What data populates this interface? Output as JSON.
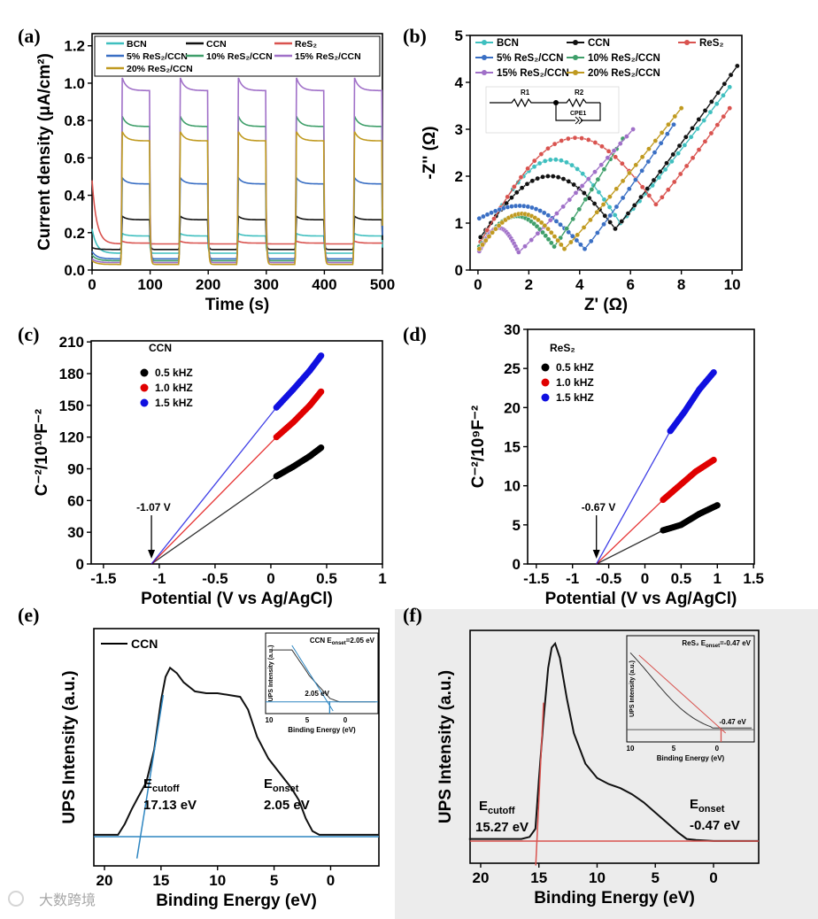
{
  "chart_data": [
    {
      "panel": "(a)",
      "type": "line",
      "xlabel": "Time (s)",
      "ylabel": "Current density (μA/cm²)",
      "xlim": [
        0,
        500
      ],
      "ylim": [
        0,
        1.265
      ],
      "xticks": [
        0,
        100,
        200,
        300,
        400,
        500
      ],
      "yticks": [
        0.0,
        0.2,
        0.4,
        0.6,
        0.8,
        1.0,
        1.2
      ],
      "light_on_intervals": [
        [
          50,
          100
        ],
        [
          150,
          200
        ],
        [
          250,
          300
        ],
        [
          350,
          400
        ],
        [
          450,
          500
        ]
      ],
      "legend_position": "top",
      "series": [
        {
          "name": "BCN",
          "color": "#3fbfbf",
          "light": 0.19,
          "dark": 0.09,
          "initial": 0.22
        },
        {
          "name": "CCN",
          "color": "#111111",
          "light": 0.28,
          "dark": 0.11,
          "initial": 0.12
        },
        {
          "name": "ReS₂",
          "color": "#d9534f",
          "light": 0.15,
          "dark": 0.14,
          "initial": 0.48
        },
        {
          "name": "5% ReS₂/CCN",
          "color": "#3a6fc4",
          "light": 0.48,
          "dark": 0.06,
          "initial": 0.1
        },
        {
          "name": "10% ReS₂/CCN",
          "color": "#3f9f6a",
          "light": 0.8,
          "dark": 0.05,
          "initial": 0.08
        },
        {
          "name": "15% ReS₂/CCN",
          "color": "#a070c8",
          "light": 1.0,
          "dark": 0.04,
          "initial": 0.06
        },
        {
          "name": "20% ReS₂/CCN",
          "color": "#c09a20",
          "light": 0.72,
          "dark": 0.03,
          "initial": 0.05
        }
      ]
    },
    {
      "panel": "(b)",
      "type": "scatter",
      "xlabel": "Z' (Ω)",
      "ylabel": "-Z'' (Ω)",
      "xlim": [
        -0.31,
        10.38
      ],
      "ylim": [
        0,
        5
      ],
      "xticks": [
        0,
        2,
        4,
        6,
        8,
        10
      ],
      "yticks": [
        0,
        1,
        2,
        3,
        4,
        5
      ],
      "legend_position": "top-left",
      "circuit_labels": [
        "R1",
        "R2",
        "CPE1"
      ],
      "series": [
        {
          "name": "BCN",
          "color": "#3fbfbf",
          "start": [
            0.1,
            0.6
          ],
          "peak_height": 2.35,
          "min": [
            5.6,
            1.0
          ],
          "end": [
            9.9,
            3.9
          ]
        },
        {
          "name": "CCN",
          "color": "#111111",
          "start": [
            0.1,
            0.7
          ],
          "peak_height": 2.0,
          "min": [
            5.4,
            0.88
          ],
          "end": [
            10.2,
            4.35
          ]
        },
        {
          "name": "ReS₂",
          "color": "#d9534f",
          "start": [
            0.1,
            0.6
          ],
          "peak_height": 2.8,
          "min": [
            7.0,
            1.4
          ],
          "end": [
            9.9,
            3.45
          ]
        },
        {
          "name": "5% ReS₂/CCN",
          "color": "#3a6fc4",
          "start": [
            0.05,
            1.1
          ],
          "peak_height": 1.33,
          "min": [
            4.2,
            0.45
          ],
          "end": [
            7.7,
            3.1
          ]
        },
        {
          "name": "10% ReS₂/CCN",
          "color": "#3f9f6a",
          "start": [
            0.05,
            0.5
          ],
          "peak_height": 1.15,
          "min": [
            3.0,
            0.5
          ],
          "end": [
            5.7,
            2.8
          ]
        },
        {
          "name": "15% ReS₂/CCN",
          "color": "#a070c8",
          "start": [
            0.05,
            0.4
          ],
          "peak_height": 0.9,
          "min": [
            1.6,
            0.38
          ],
          "end": [
            6.1,
            3.0
          ]
        },
        {
          "name": "20% ReS₂/CCN",
          "color": "#c09a20",
          "start": [
            0.05,
            0.45
          ],
          "peak_height": 1.2,
          "min": [
            3.4,
            0.45
          ],
          "end": [
            8.0,
            3.45
          ]
        }
      ]
    },
    {
      "panel": "(c)",
      "type": "line",
      "title": "CCN",
      "xlabel": "Potential (V vs Ag/AgCl)",
      "ylabel": "C⁻²/10¹⁰F⁻²",
      "xlim": [
        -1.61,
        1.0
      ],
      "ylim": [
        0,
        211
      ],
      "xticks": [
        -1.5,
        -1.0,
        -0.5,
        0.0,
        0.5,
        1.0
      ],
      "yticks": [
        0,
        30,
        60,
        90,
        120,
        150,
        180,
        210
      ],
      "annotation": {
        "text": "-1.07 V",
        "x": -1.07
      },
      "legend_position": "top-left",
      "series": [
        {
          "name": "0.5 kHZ",
          "color": "#000000",
          "measured": [
            [
              0.05,
              83
            ],
            [
              0.2,
              92
            ],
            [
              0.35,
              102
            ],
            [
              0.45,
              110
            ]
          ]
        },
        {
          "name": "1.0 kHZ",
          "color": "#e00000",
          "measured": [
            [
              0.05,
              120
            ],
            [
              0.2,
              134
            ],
            [
              0.35,
              150
            ],
            [
              0.45,
              163
            ]
          ]
        },
        {
          "name": "1.5 kHZ",
          "color": "#1010e0",
          "measured": [
            [
              0.05,
              148
            ],
            [
              0.2,
              165
            ],
            [
              0.35,
              183
            ],
            [
              0.45,
              197
            ]
          ]
        }
      ]
    },
    {
      "panel": "(d)",
      "type": "line",
      "title": "ReS₂",
      "xlabel": "Potential (V vs Ag/AgCl)",
      "ylabel": "C⁻²/10⁹F⁻²",
      "xlim": [
        -1.62,
        1.51
      ],
      "ylim": [
        0,
        30
      ],
      "xticks": [
        -1.5,
        -1.0,
        -0.5,
        0.0,
        0.5,
        1.0,
        1.5
      ],
      "yticks": [
        0,
        5,
        10,
        15,
        20,
        25,
        30
      ],
      "annotation": {
        "text": "-0.67 V",
        "x": -0.67
      },
      "legend_position": "top-left",
      "series": [
        {
          "name": "0.5 kHZ",
          "color": "#000000",
          "measured": [
            [
              0.25,
              4.3
            ],
            [
              0.5,
              5.0
            ],
            [
              0.75,
              6.4
            ],
            [
              1.0,
              7.5
            ]
          ]
        },
        {
          "name": "1.0 kHZ",
          "color": "#e00000",
          "measured": [
            [
              0.25,
              8.2
            ],
            [
              0.45,
              9.8
            ],
            [
              0.7,
              11.8
            ],
            [
              0.95,
              13.3
            ]
          ]
        },
        {
          "name": "1.5 kHZ",
          "color": "#1010e0",
          "measured": [
            [
              0.35,
              17.0
            ],
            [
              0.55,
              19.5
            ],
            [
              0.75,
              22.3
            ],
            [
              0.95,
              24.5
            ]
          ]
        }
      ]
    },
    {
      "panel": "(e)",
      "type": "line",
      "xlabel": "Binding Energy (eV)",
      "ylabel": "UPS Intensity (a.u.)",
      "xlim": [
        20.94,
        -4.27
      ],
      "ylim": [
        -0.161,
        1.146
      ],
      "xticks": [
        20,
        15,
        10,
        5,
        0
      ],
      "legend": "CCN",
      "legend_position": "top-left",
      "line_color": "#111111",
      "fit_color": "#2e86c1",
      "x": [
        21,
        18.8,
        18.2,
        17.6,
        17.0,
        16.3,
        15.6,
        15.0,
        14.6,
        14.2,
        13.6,
        13.0,
        12.0,
        11.0,
        10.0,
        9.0,
        8.0,
        7.3,
        6.5,
        5.5,
        4.5,
        3.5,
        2.8,
        2.2,
        1.6,
        1.0,
        -4.3
      ],
      "y": [
        0.01,
        0.01,
        0.07,
        0.15,
        0.22,
        0.3,
        0.48,
        0.75,
        0.88,
        0.93,
        0.9,
        0.85,
        0.8,
        0.79,
        0.79,
        0.78,
        0.77,
        0.7,
        0.55,
        0.43,
        0.35,
        0.27,
        0.2,
        0.1,
        0.03,
        0.01,
        0.01
      ],
      "annotations": [
        {
          "label": "E",
          "sub": "cutoff",
          "value": "17.13 eV",
          "x": 17.13
        },
        {
          "label": "E",
          "sub": "onset",
          "value": "2.05 eV",
          "x": 2.05
        }
      ],
      "inset": {
        "title": "CCN E",
        "title_sub": "onset",
        "title_value": "=2.05 eV",
        "ylabel": "UPS Intensity (a.u.)",
        "xlabel": "Binding Energy (eV)",
        "xticks": [
          10,
          5,
          0
        ],
        "marker": "2.05 eV"
      }
    },
    {
      "panel": "(f)",
      "type": "line",
      "xlabel": "Binding Energy (eV)",
      "ylabel": "UPS Intensity (a.u.)",
      "xlim": [
        20.91,
        -3.88
      ],
      "ylim": [
        -0.109,
        1.035
      ],
      "xticks": [
        20,
        15,
        10,
        5,
        0
      ],
      "line_color": "#111111",
      "fit_color": "#d9534f",
      "x": [
        21,
        16.5,
        15.8,
        15.3,
        15.0,
        14.6,
        14.2,
        13.9,
        13.6,
        13.2,
        12.6,
        12.0,
        11.0,
        10.0,
        9.0,
        8.0,
        7.0,
        6.0,
        5.0,
        4.0,
        3.0,
        2.3,
        1.5,
        0.0,
        -3.9
      ],
      "y": [
        0.01,
        0.01,
        0.02,
        0.06,
        0.3,
        0.6,
        0.85,
        0.95,
        0.97,
        0.9,
        0.7,
        0.53,
        0.38,
        0.31,
        0.28,
        0.26,
        0.23,
        0.19,
        0.14,
        0.09,
        0.04,
        0.01,
        0.005,
        0.0,
        0.0
      ],
      "annotations": [
        {
          "label": "E",
          "sub": "cutoff",
          "value": "15.27 eV",
          "x": 15.27
        },
        {
          "label": "E",
          "sub": "onset",
          "value": "-0.47 eV",
          "x": -0.47
        }
      ],
      "inset": {
        "title": "ReS₂ E",
        "title_sub": "onset",
        "title_value": "=-0.47 eV",
        "ylabel": "UPS Intensity (a.u.)",
        "xlabel": "Binding Energy (eV)",
        "xticks": [
          10,
          5,
          0
        ],
        "marker": "-0.47 eV"
      }
    }
  ],
  "watermark": "大数跨境"
}
